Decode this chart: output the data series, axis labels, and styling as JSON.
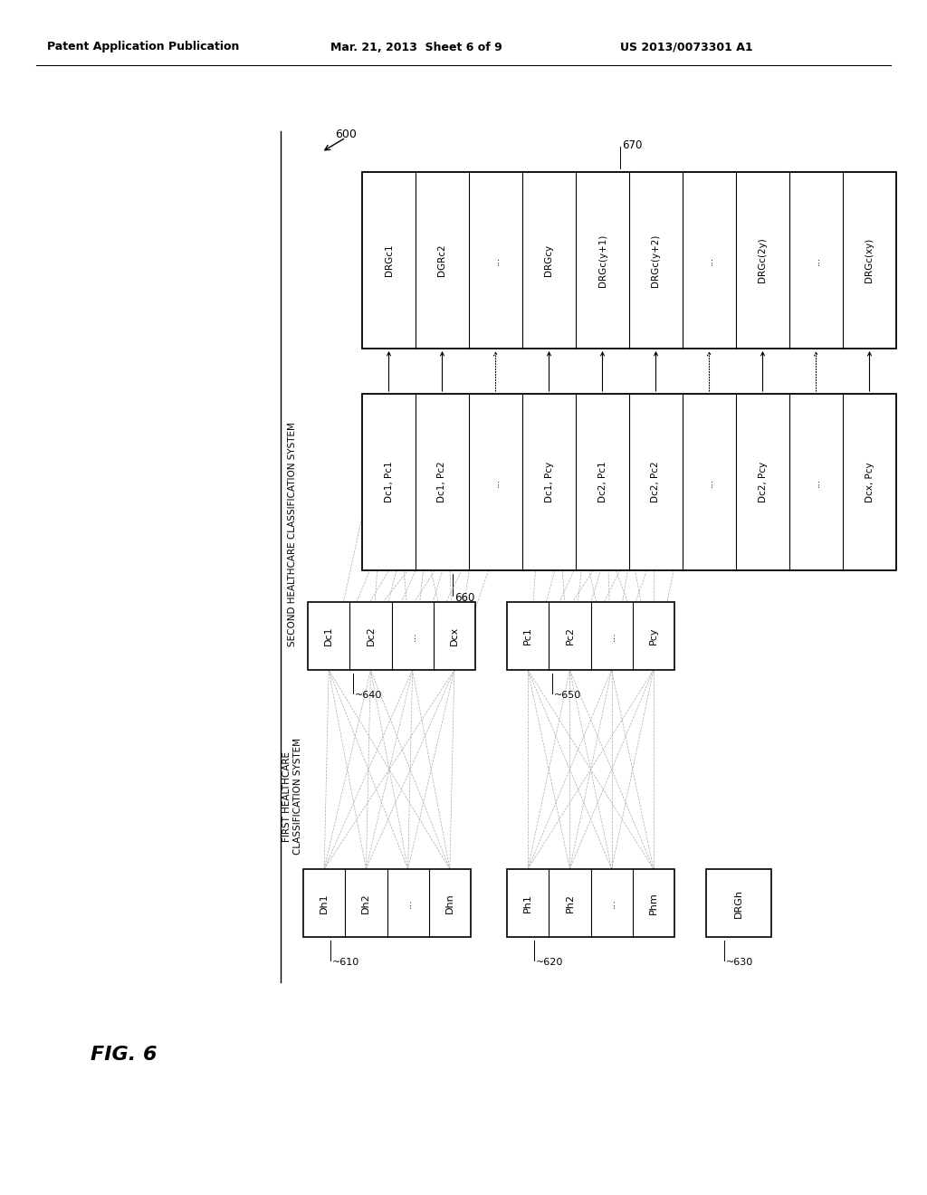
{
  "header_left": "Patent Application Publication",
  "header_mid": "Mar. 21, 2013  Sheet 6 of 9",
  "header_right": "US 2013/0073301 A1",
  "fig_label": "FIG. 6",
  "label_second_hcs": "SECOND HEALTHCARE CLASSIFICATION SYSTEM",
  "label_first_hcs": "FIRST HEALTHCARE\nCLASSIFICATION SYSTEM",
  "ref600": "600",
  "ref610": "610",
  "ref620": "620",
  "ref630": "630",
  "ref640": "640",
  "ref650": "650",
  "ref660": "660",
  "ref670": "670",
  "box610_cells": [
    "Dh1",
    "Dh2",
    "...",
    "Dhn"
  ],
  "box620_cells": [
    "Ph1",
    "Ph2",
    "...",
    "Phm"
  ],
  "box630_cell": "DRGh",
  "box640_cells": [
    "Dc1",
    "Dc2",
    "...",
    "Dcx"
  ],
  "box650_cells": [
    "Pc1",
    "Pc2",
    "...",
    "Pcy"
  ],
  "box660_cells": [
    "Dc1, Pc1",
    "Dc1, Pc2",
    "...",
    "Dc1, Pcy",
    "Dc2, Pc1",
    "Dc2, Pc2",
    "...",
    "Dc2, Pcy",
    "...",
    "Dcx, Pcy"
  ],
  "box670_cells": [
    "DRGc1",
    "DGRc2",
    "...",
    "DRGcy",
    "DRGc(y+1)",
    "DRGc(y+2)",
    "...",
    "DRGc(2y)",
    "...",
    "DRGc(xy)"
  ]
}
